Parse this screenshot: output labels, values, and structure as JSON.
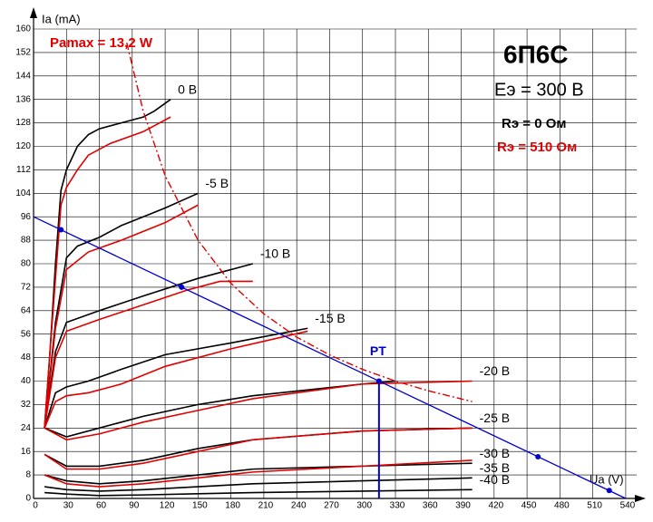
{
  "chart_data": {
    "type": "line",
    "title": "6П6С",
    "subtitle": "Eэ = 300 В",
    "xlabel": "Ua (V)",
    "ylabel": "Ia (mA)",
    "xlim": [
      0,
      550
    ],
    "ylim": [
      0,
      160
    ],
    "xticks": [
      0,
      30,
      60,
      90,
      120,
      150,
      180,
      210,
      240,
      270,
      300,
      330,
      360,
      390,
      420,
      450,
      480,
      510,
      540
    ],
    "yticks": [
      0,
      8,
      16,
      24,
      32,
      40,
      48,
      56,
      64,
      72,
      80,
      88,
      96,
      104,
      112,
      120,
      128,
      136,
      144,
      152,
      160
    ],
    "grid": true,
    "series": [
      {
        "name": "Rэ = 0 Ом",
        "color": "#000000",
        "curves": [
          {
            "label": "0 В",
            "x": [
              10,
              15,
              20,
              25,
              30,
              40,
              50,
              60,
              80,
              100,
              110,
              125
            ],
            "values": [
              24,
              50,
              80,
              105,
              112,
              120,
              124,
              126,
              128,
              130,
              132,
              136
            ]
          },
          {
            "label": "-5 В",
            "x": [
              10,
              20,
              30,
              40,
              60,
              80,
              100,
              120,
              150
            ],
            "values": [
              24,
              60,
              82,
              86,
              89,
              93,
              96,
              99,
              104
            ]
          },
          {
            "label": "-10 В",
            "x": [
              10,
              20,
              30,
              60,
              100,
              150,
              200
            ],
            "values": [
              24,
              50,
              60,
              64,
              69,
              75,
              80
            ]
          },
          {
            "label": "-15 В",
            "x": [
              10,
              20,
              30,
              50,
              80,
              120,
              180,
              250
            ],
            "values": [
              24,
              36,
              38,
              40,
              44,
              49,
              53,
              58
            ]
          },
          {
            "label": "-20 В",
            "x": [
              10,
              30,
              60,
              100,
              150,
              200,
              300,
              330
            ],
            "values": [
              24,
              21,
              24,
              28,
              32,
              35,
              39,
              40
            ]
          },
          {
            "label": "-25 В",
            "x": [
              10,
              30,
              60,
              100,
              150,
              200,
              300,
              400
            ],
            "values": [
              15,
              11,
              11,
              13,
              17,
              20,
              23,
              24
            ]
          },
          {
            "label": "-30 В",
            "x": [
              10,
              30,
              60,
              100,
              150,
              200,
              300,
              400
            ],
            "values": [
              8,
              6,
              5,
              6,
              8,
              10,
              11,
              12
            ]
          },
          {
            "label": "-35 В",
            "x": [
              10,
              30,
              60,
              100,
              150,
              200,
              300,
              400
            ],
            "values": [
              4,
              3,
              2.5,
              3,
              4,
              5,
              6,
              7
            ]
          },
          {
            "label": "-40 В",
            "x": [
              10,
              30,
              60,
              100,
              150,
              200,
              300,
              400
            ],
            "values": [
              2,
              1.5,
              1,
              1.2,
              1.6,
              2,
              2.5,
              3
            ]
          }
        ]
      },
      {
        "name": "Rэ = 510 Ом",
        "color": "#e00000",
        "curves": [
          {
            "x": [
              10,
              15,
              20,
              25,
              30,
              40,
              50,
              70,
              100,
              125
            ],
            "values": [
              24,
              50,
              75,
              100,
              106,
              112,
              117,
              121,
              125,
              130
            ]
          },
          {
            "x": [
              10,
              20,
              30,
              50,
              80,
              100,
              120,
              150
            ],
            "values": [
              24,
              58,
              78,
              84,
              88,
              91,
              94,
              100
            ]
          },
          {
            "x": [
              10,
              20,
              30,
              60,
              100,
              140,
              170,
              200
            ],
            "values": [
              24,
              48,
              57,
              61,
              66,
              71,
              74,
              74
            ]
          },
          {
            "x": [
              10,
              20,
              30,
              50,
              80,
              120,
              180,
              250
            ],
            "values": [
              24,
              33,
              35,
              36,
              39,
              45,
              51,
              57
            ]
          },
          {
            "x": [
              10,
              30,
              60,
              100,
              150,
              200,
              300,
              400
            ],
            "values": [
              24,
              20,
              22,
              26,
              30,
              34,
              39,
              40
            ]
          },
          {
            "x": [
              10,
              30,
              60,
              100,
              150,
              200,
              300,
              400
            ],
            "values": [
              15,
              10,
              10,
              12,
              16,
              20,
              23,
              24
            ]
          },
          {
            "x": [
              10,
              30,
              60,
              100,
              150,
              200,
              300,
              400
            ],
            "values": [
              8,
              5,
              4,
              5,
              7,
              9,
              11,
              13
            ]
          }
        ]
      }
    ],
    "pmax": {
      "label": "Pamax = 13,2 W",
      "color": "#e00000",
      "x": [
        85,
        100,
        120,
        150,
        180,
        210,
        240,
        270,
        300,
        330,
        360,
        400
      ],
      "values": [
        155.3,
        132,
        110,
        88,
        73.3,
        62.9,
        55,
        48.9,
        44,
        40,
        36.7,
        33
      ]
    },
    "load_line": {
      "color": "#0000cc",
      "x": [
        0,
        540
      ],
      "values": [
        96,
        0
      ]
    },
    "points": {
      "x": [
        25,
        135,
        315,
        460,
        525
      ],
      "values": [
        91.6,
        72,
        40,
        14.2,
        2.7
      ]
    },
    "operating_point": {
      "label": "PT",
      "x": 315,
      "value": 40
    }
  }
}
